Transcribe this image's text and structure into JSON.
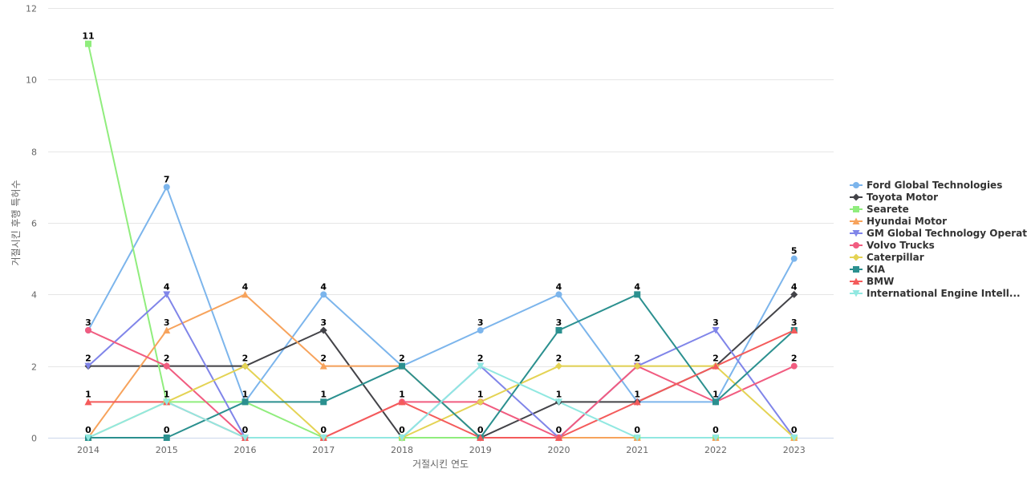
{
  "chart_data": {
    "type": "line",
    "xlabel": "거절시킨 연도",
    "ylabel": "거절시킨 후행 특허수",
    "x": [
      "2014",
      "2015",
      "2016",
      "2017",
      "2018",
      "2019",
      "2020",
      "2021",
      "2022",
      "2023"
    ],
    "ylim": [
      0,
      12
    ],
    "yticks": [
      "0",
      "2",
      "4",
      "6",
      "8",
      "10",
      "12"
    ],
    "grid": "horizontal",
    "legend_position": "right",
    "series": [
      {
        "name": "Ford Global Technologies",
        "color": "#7cb5ec",
        "marker": "circle",
        "values": [
          3,
          7,
          1,
          4,
          2,
          3,
          4,
          1,
          1,
          5
        ]
      },
      {
        "name": "Toyota Motor",
        "color": "#434348",
        "marker": "diamond",
        "values": [
          2,
          2,
          2,
          3,
          0,
          0,
          1,
          1,
          2,
          4
        ]
      },
      {
        "name": "Searete",
        "color": "#90ed7d",
        "marker": "square",
        "values": [
          11,
          1,
          1,
          0,
          0,
          0,
          0,
          0,
          0,
          0
        ]
      },
      {
        "name": "Hyundai Motor",
        "color": "#f7a35c",
        "marker": "triangle",
        "values": [
          0,
          3,
          4,
          2,
          2,
          0,
          0,
          0,
          0,
          0
        ]
      },
      {
        "name": "GM Global Technology Operat...",
        "color": "#8085e9",
        "marker": "triangle-down",
        "values": [
          2,
          4,
          0,
          0,
          0,
          2,
          0,
          2,
          3,
          0
        ]
      },
      {
        "name": "Volvo Trucks",
        "color": "#f15c80",
        "marker": "circle",
        "values": [
          3,
          2,
          0,
          0,
          1,
          1,
          0,
          2,
          1,
          2
        ]
      },
      {
        "name": "Caterpillar",
        "color": "#e4d354",
        "marker": "diamond",
        "values": [
          0,
          1,
          2,
          0,
          0,
          1,
          2,
          2,
          2,
          0
        ]
      },
      {
        "name": "KIA",
        "color": "#2b908f",
        "marker": "square",
        "values": [
          0,
          0,
          1,
          1,
          2,
          0,
          3,
          4,
          1,
          3
        ]
      },
      {
        "name": "BMW",
        "color": "#f45b5b",
        "marker": "triangle",
        "values": [
          1,
          1,
          0,
          0,
          1,
          0,
          0,
          1,
          2,
          3
        ]
      },
      {
        "name": "International Engine Intell...",
        "color": "#91e8e1",
        "marker": "triangle-down",
        "values": [
          0,
          1,
          0,
          0,
          0,
          2,
          1,
          0,
          0,
          0
        ]
      }
    ],
    "data_labels": [
      {
        "x": "2014",
        "y": 11,
        "text": "11"
      },
      {
        "x": "2014",
        "y": 3,
        "text": "3"
      },
      {
        "x": "2014",
        "y": 2,
        "text": "2"
      },
      {
        "x": "2014",
        "y": 1,
        "text": "1"
      },
      {
        "x": "2014",
        "y": 0,
        "text": "0"
      },
      {
        "x": "2015",
        "y": 7,
        "text": "7"
      },
      {
        "x": "2015",
        "y": 4,
        "text": "4"
      },
      {
        "x": "2015",
        "y": 3,
        "text": "3"
      },
      {
        "x": "2015",
        "y": 2,
        "text": "2"
      },
      {
        "x": "2015",
        "y": 1,
        "text": "1"
      },
      {
        "x": "2015",
        "y": 0,
        "text": "0"
      },
      {
        "x": "2016",
        "y": 4,
        "text": "4"
      },
      {
        "x": "2016",
        "y": 2,
        "text": "2"
      },
      {
        "x": "2016",
        "y": 1,
        "text": "1"
      },
      {
        "x": "2016",
        "y": 0,
        "text": "0"
      },
      {
        "x": "2017",
        "y": 4,
        "text": "4"
      },
      {
        "x": "2017",
        "y": 3,
        "text": "3"
      },
      {
        "x": "2017",
        "y": 2,
        "text": "2"
      },
      {
        "x": "2017",
        "y": 1,
        "text": "1"
      },
      {
        "x": "2017",
        "y": 0,
        "text": "0"
      },
      {
        "x": "2018",
        "y": 2,
        "text": "2"
      },
      {
        "x": "2018",
        "y": 1,
        "text": "1"
      },
      {
        "x": "2018",
        "y": 0,
        "text": "0"
      },
      {
        "x": "2019",
        "y": 3,
        "text": "3"
      },
      {
        "x": "2019",
        "y": 2,
        "text": "2"
      },
      {
        "x": "2019",
        "y": 1,
        "text": "1"
      },
      {
        "x": "2019",
        "y": 0,
        "text": "0"
      },
      {
        "x": "2020",
        "y": 4,
        "text": "4"
      },
      {
        "x": "2020",
        "y": 3,
        "text": "3"
      },
      {
        "x": "2020",
        "y": 2,
        "text": "2"
      },
      {
        "x": "2020",
        "y": 1,
        "text": "1"
      },
      {
        "x": "2020",
        "y": 0,
        "text": "0"
      },
      {
        "x": "2021",
        "y": 4,
        "text": "4"
      },
      {
        "x": "2021",
        "y": 2,
        "text": "2"
      },
      {
        "x": "2021",
        "y": 1,
        "text": "1"
      },
      {
        "x": "2021",
        "y": 0,
        "text": "0"
      },
      {
        "x": "2022",
        "y": 3,
        "text": "3"
      },
      {
        "x": "2022",
        "y": 2,
        "text": "2"
      },
      {
        "x": "2022",
        "y": 1,
        "text": "1"
      },
      {
        "x": "2022",
        "y": 0,
        "text": "0"
      },
      {
        "x": "2023",
        "y": 5,
        "text": "5"
      },
      {
        "x": "2023",
        "y": 4,
        "text": "4"
      },
      {
        "x": "2023",
        "y": 3,
        "text": "3"
      },
      {
        "x": "2023",
        "y": 2,
        "text": "2"
      },
      {
        "x": "2023",
        "y": 0,
        "text": "0"
      }
    ]
  }
}
